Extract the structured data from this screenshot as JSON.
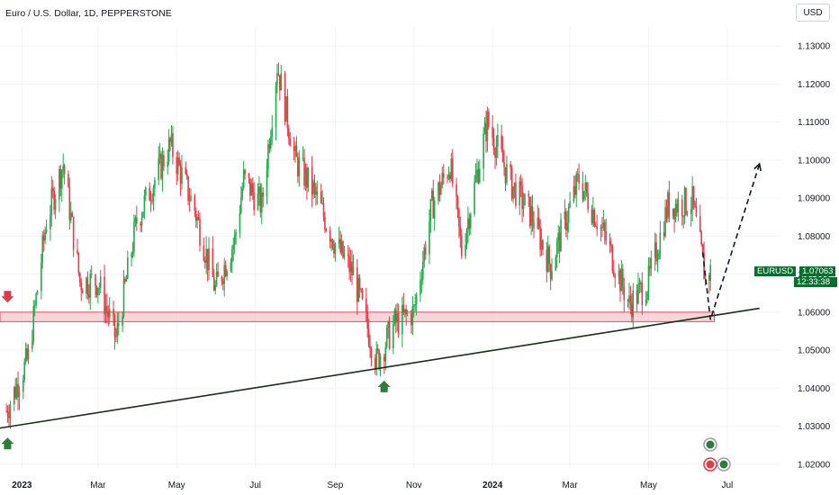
{
  "header": {
    "title": "Euro / U.S. Dollar, 1D, PEPPERSTONE",
    "currency_button": "USD"
  },
  "price_tag": {
    "symbol": "EURUSD",
    "price": "1.07063",
    "countdown": "12:33:38",
    "value": 1.07063,
    "color": "#0b6e2e"
  },
  "colors": {
    "up_candle": "#22ab4a",
    "down_candle": "#f23645",
    "support_fill": "#f7c7cc",
    "support_stroke": "#e0505e",
    "trendline": "#1b2e1b",
    "arrow_up": "#2e7d3a",
    "arrow_down": "#e53945",
    "projection": "#131722"
  },
  "icons": {
    "arrow_down_marker": "arrow-down-icon",
    "arrow_up_marker_1": "arrow-up-icon",
    "arrow_up_marker_2": "arrow-up-icon",
    "event_badges": "event-badge-icon"
  },
  "chart_data": {
    "type": "candlestick",
    "y_axis": {
      "ticks": [
        "1.13000",
        "1.12000",
        "1.11000",
        "1.10000",
        "1.09000",
        "1.08000",
        "1.07000",
        "1.06000",
        "1.05000",
        "1.04000",
        "1.03000",
        "1.02000"
      ],
      "tick_values": [
        1.13,
        1.12,
        1.11,
        1.1,
        1.09,
        1.08,
        1.07,
        1.06,
        1.05,
        1.04,
        1.03,
        1.02
      ],
      "range": [
        1.019,
        1.135
      ],
      "side": "right"
    },
    "x_axis": {
      "ticks": [
        "2023",
        "Mar",
        "May",
        "Jul",
        "Sep",
        "Nov",
        "2024",
        "Mar",
        "May",
        "Jul"
      ],
      "tick_dates": [
        "2023-01-01",
        "2023-03-01",
        "2023-05-01",
        "2023-07-01",
        "2023-09-01",
        "2023-11-01",
        "2024-01-01",
        "2024-03-01",
        "2024-05-01",
        "2024-07-01"
      ],
      "bold": [
        "2023",
        "2024"
      ],
      "range": [
        "2022-12-15",
        "2024-08-12"
      ]
    },
    "price_path": [
      {
        "date": "2022-12-20",
        "price": 1.034
      },
      {
        "date": "2023-01-06",
        "price": 1.048
      },
      {
        "date": "2023-01-20",
        "price": 1.084
      },
      {
        "date": "2023-02-02",
        "price": 1.099
      },
      {
        "date": "2023-02-15",
        "price": 1.068
      },
      {
        "date": "2023-03-01",
        "price": 1.068
      },
      {
        "date": "2023-03-15",
        "price": 1.053
      },
      {
        "date": "2023-03-31",
        "price": 1.084
      },
      {
        "date": "2023-04-26",
        "price": 1.104
      },
      {
        "date": "2023-05-15",
        "price": 1.087
      },
      {
        "date": "2023-05-31",
        "price": 1.066
      },
      {
        "date": "2023-06-15",
        "price": 1.079
      },
      {
        "date": "2023-06-22",
        "price": 1.095
      },
      {
        "date": "2023-07-06",
        "price": 1.088
      },
      {
        "date": "2023-07-18",
        "price": 1.125
      },
      {
        "date": "2023-08-01",
        "price": 1.1
      },
      {
        "date": "2023-08-15",
        "price": 1.092
      },
      {
        "date": "2023-09-01",
        "price": 1.078
      },
      {
        "date": "2023-09-15",
        "price": 1.07
      },
      {
        "date": "2023-10-03",
        "price": 1.047
      },
      {
        "date": "2023-10-17",
        "price": 1.057
      },
      {
        "date": "2023-11-01",
        "price": 1.06
      },
      {
        "date": "2023-11-15",
        "price": 1.088
      },
      {
        "date": "2023-11-29",
        "price": 1.099
      },
      {
        "date": "2023-12-08",
        "price": 1.076
      },
      {
        "date": "2023-12-28",
        "price": 1.11
      },
      {
        "date": "2024-01-15",
        "price": 1.094
      },
      {
        "date": "2024-02-01",
        "price": 1.085
      },
      {
        "date": "2024-02-15",
        "price": 1.072
      },
      {
        "date": "2024-03-08",
        "price": 1.095
      },
      {
        "date": "2024-03-28",
        "price": 1.08
      },
      {
        "date": "2024-04-16",
        "price": 1.062
      },
      {
        "date": "2024-05-01",
        "price": 1.068
      },
      {
        "date": "2024-05-16",
        "price": 1.088
      },
      {
        "date": "2024-06-04",
        "price": 1.089
      },
      {
        "date": "2024-06-14",
        "price": 1.069
      },
      {
        "date": "2024-06-18",
        "price": 1.0706
      }
    ],
    "support_zone": {
      "from_date": "2022-12-15",
      "to_date": "2024-06-21",
      "low": 1.0575,
      "high": 1.06
    },
    "trendline": {
      "from": {
        "date": "2022-12-15",
        "price": 1.0295
      },
      "to": {
        "date": "2024-07-26",
        "price": 1.061
      }
    },
    "projection": [
      {
        "date": "2024-06-12",
        "price": 1.0757
      },
      {
        "date": "2024-06-18",
        "price": 1.058
      },
      {
        "date": "2024-07-26",
        "price": 1.099
      }
    ],
    "markers": [
      {
        "type": "down-arrow",
        "date": "2022-12-16",
        "price": 1.0625
      },
      {
        "type": "up-arrow",
        "date": "2022-12-16",
        "price": 1.027
      },
      {
        "type": "up-arrow",
        "date": "2023-10-04",
        "price": 1.042
      }
    ]
  }
}
